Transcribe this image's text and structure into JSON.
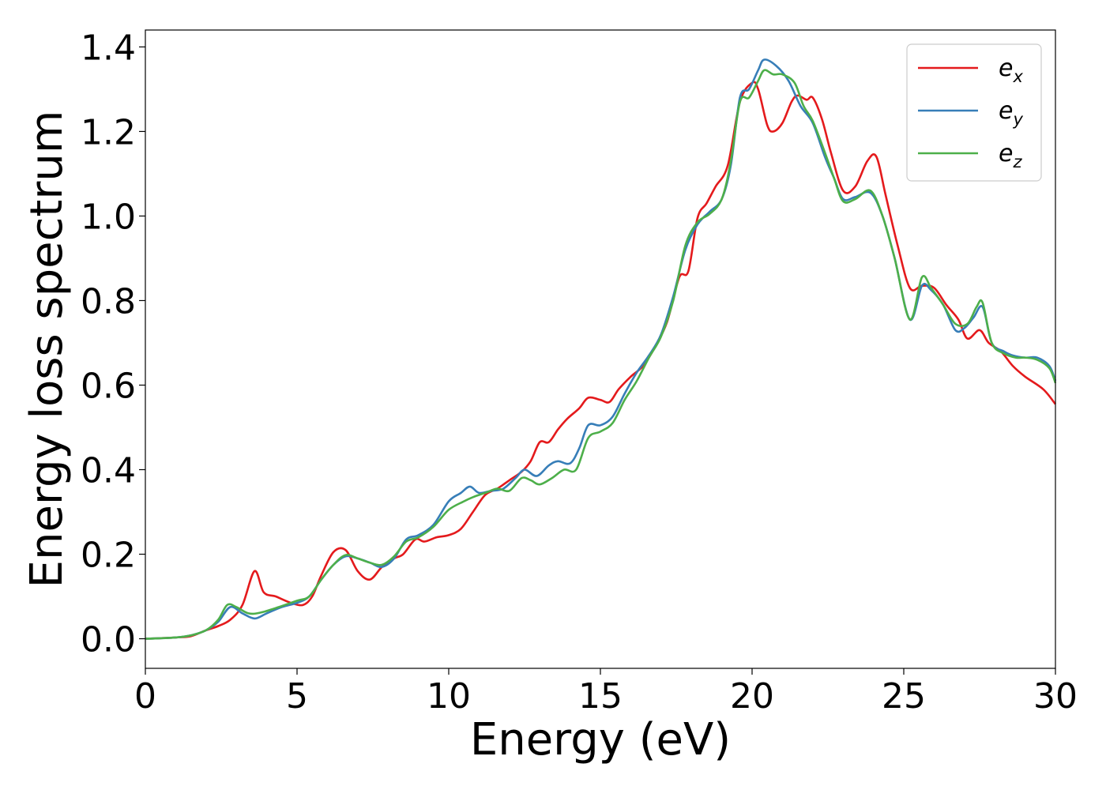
{
  "chart_data": {
    "type": "line",
    "title": "",
    "xlabel": "Energy (eV)",
    "ylabel": "Energy loss spectrum",
    "xlim": [
      0,
      30
    ],
    "ylim": [
      -0.07,
      1.44
    ],
    "xticks": [
      0,
      5,
      10,
      15,
      20,
      25,
      30
    ],
    "xtick_labels": [
      "0",
      "5",
      "10",
      "15",
      "20",
      "25",
      "30"
    ],
    "yticks": [
      0.0,
      0.2,
      0.4,
      0.6,
      0.8,
      1.0,
      1.2,
      1.4
    ],
    "ytick_labels": [
      "0.0",
      "0.2",
      "0.4",
      "0.6",
      "0.8",
      "1.0",
      "1.2",
      "1.4"
    ],
    "grid": false,
    "legend_position": "top-right",
    "series": [
      {
        "name": "e_x",
        "label_base": "e",
        "label_sub": "x",
        "color": "#e41a1c",
        "points": [
          [
            0,
            0
          ],
          [
            1,
            0.003
          ],
          [
            1.5,
            0.006
          ],
          [
            2,
            0.02
          ],
          [
            2.4,
            0.03
          ],
          [
            2.8,
            0.045
          ],
          [
            3.2,
            0.08
          ],
          [
            3.6,
            0.16
          ],
          [
            3.9,
            0.11
          ],
          [
            4.3,
            0.1
          ],
          [
            4.8,
            0.085
          ],
          [
            5.2,
            0.08
          ],
          [
            5.5,
            0.1
          ],
          [
            5.8,
            0.15
          ],
          [
            6.2,
            0.205
          ],
          [
            6.6,
            0.21
          ],
          [
            7,
            0.16
          ],
          [
            7.4,
            0.14
          ],
          [
            7.8,
            0.17
          ],
          [
            8.2,
            0.19
          ],
          [
            8.5,
            0.2
          ],
          [
            8.9,
            0.235
          ],
          [
            9.2,
            0.23
          ],
          [
            9.6,
            0.24
          ],
          [
            10,
            0.245
          ],
          [
            10.4,
            0.26
          ],
          [
            10.8,
            0.3
          ],
          [
            11.2,
            0.34
          ],
          [
            11.6,
            0.355
          ],
          [
            12,
            0.375
          ],
          [
            12.4,
            0.395
          ],
          [
            12.7,
            0.42
          ],
          [
            13,
            0.465
          ],
          [
            13.3,
            0.465
          ],
          [
            13.6,
            0.495
          ],
          [
            13.9,
            0.52
          ],
          [
            14.3,
            0.545
          ],
          [
            14.6,
            0.57
          ],
          [
            15,
            0.565
          ],
          [
            15.3,
            0.56
          ],
          [
            15.6,
            0.59
          ],
          [
            16,
            0.62
          ],
          [
            16.4,
            0.645
          ],
          [
            16.8,
            0.69
          ],
          [
            17.2,
            0.75
          ],
          [
            17.6,
            0.855
          ],
          [
            17.9,
            0.87
          ],
          [
            18.2,
            0.995
          ],
          [
            18.5,
            1.03
          ],
          [
            18.8,
            1.07
          ],
          [
            19.2,
            1.12
          ],
          [
            19.6,
            1.27
          ],
          [
            20,
            1.315
          ],
          [
            20.2,
            1.3
          ],
          [
            20.5,
            1.215
          ],
          [
            20.7,
            1.2
          ],
          [
            21,
            1.22
          ],
          [
            21.3,
            1.27
          ],
          [
            21.5,
            1.285
          ],
          [
            21.8,
            1.275
          ],
          [
            22,
            1.28
          ],
          [
            22.3,
            1.23
          ],
          [
            22.6,
            1.15
          ],
          [
            23,
            1.06
          ],
          [
            23.4,
            1.07
          ],
          [
            23.8,
            1.13
          ],
          [
            24.1,
            1.14
          ],
          [
            24.4,
            1.05
          ],
          [
            24.8,
            0.93
          ],
          [
            25.2,
            0.83
          ],
          [
            25.6,
            0.835
          ],
          [
            26,
            0.83
          ],
          [
            26.4,
            0.79
          ],
          [
            26.8,
            0.755
          ],
          [
            27.1,
            0.71
          ],
          [
            27.5,
            0.73
          ],
          [
            27.8,
            0.7
          ],
          [
            28.2,
            0.68
          ],
          [
            28.6,
            0.645
          ],
          [
            29,
            0.62
          ],
          [
            29.6,
            0.59
          ],
          [
            30,
            0.555
          ]
        ]
      },
      {
        "name": "e_y",
        "label_base": "e",
        "label_sub": "y",
        "color": "#377eb8",
        "points": [
          [
            0,
            0
          ],
          [
            1,
            0.003
          ],
          [
            1.5,
            0.008
          ],
          [
            2,
            0.02
          ],
          [
            2.4,
            0.04
          ],
          [
            2.8,
            0.075
          ],
          [
            3.2,
            0.06
          ],
          [
            3.6,
            0.048
          ],
          [
            4,
            0.06
          ],
          [
            4.5,
            0.075
          ],
          [
            5,
            0.085
          ],
          [
            5.4,
            0.1
          ],
          [
            5.8,
            0.14
          ],
          [
            6.2,
            0.175
          ],
          [
            6.6,
            0.195
          ],
          [
            7,
            0.19
          ],
          [
            7.4,
            0.18
          ],
          [
            7.8,
            0.17
          ],
          [
            8.2,
            0.19
          ],
          [
            8.6,
            0.235
          ],
          [
            9,
            0.245
          ],
          [
            9.5,
            0.27
          ],
          [
            10,
            0.325
          ],
          [
            10.4,
            0.345
          ],
          [
            10.7,
            0.36
          ],
          [
            11,
            0.345
          ],
          [
            11.4,
            0.35
          ],
          [
            11.8,
            0.355
          ],
          [
            12.2,
            0.38
          ],
          [
            12.5,
            0.4
          ],
          [
            12.9,
            0.385
          ],
          [
            13.3,
            0.41
          ],
          [
            13.6,
            0.42
          ],
          [
            14,
            0.415
          ],
          [
            14.3,
            0.45
          ],
          [
            14.6,
            0.505
          ],
          [
            15,
            0.505
          ],
          [
            15.4,
            0.525
          ],
          [
            15.8,
            0.58
          ],
          [
            16.2,
            0.63
          ],
          [
            16.6,
            0.67
          ],
          [
            17,
            0.72
          ],
          [
            17.4,
            0.81
          ],
          [
            17.8,
            0.92
          ],
          [
            18.2,
            0.98
          ],
          [
            18.6,
            1.01
          ],
          [
            19,
            1.04
          ],
          [
            19.3,
            1.12
          ],
          [
            19.6,
            1.28
          ],
          [
            19.9,
            1.3
          ],
          [
            20.2,
            1.345
          ],
          [
            20.4,
            1.37
          ],
          [
            20.8,
            1.355
          ],
          [
            21.2,
            1.32
          ],
          [
            21.6,
            1.26
          ],
          [
            22,
            1.22
          ],
          [
            22.4,
            1.14
          ],
          [
            22.7,
            1.09
          ],
          [
            23,
            1.04
          ],
          [
            23.4,
            1.045
          ],
          [
            23.9,
            1.055
          ],
          [
            24.3,
            1.0
          ],
          [
            24.7,
            0.9
          ],
          [
            25.2,
            0.755
          ],
          [
            25.6,
            0.835
          ],
          [
            25.9,
            0.825
          ],
          [
            26.3,
            0.79
          ],
          [
            26.7,
            0.73
          ],
          [
            27,
            0.735
          ],
          [
            27.3,
            0.76
          ],
          [
            27.6,
            0.785
          ],
          [
            27.9,
            0.7
          ],
          [
            28.3,
            0.68
          ],
          [
            28.6,
            0.67
          ],
          [
            29,
            0.665
          ],
          [
            29.4,
            0.665
          ],
          [
            29.8,
            0.645
          ],
          [
            30,
            0.61
          ]
        ]
      },
      {
        "name": "e_z",
        "label_base": "e",
        "label_sub": "z",
        "color": "#4daf4a",
        "points": [
          [
            0,
            0
          ],
          [
            1,
            0.003
          ],
          [
            1.5,
            0.008
          ],
          [
            2,
            0.02
          ],
          [
            2.4,
            0.045
          ],
          [
            2.7,
            0.08
          ],
          [
            3,
            0.075
          ],
          [
            3.4,
            0.06
          ],
          [
            3.8,
            0.062
          ],
          [
            4.4,
            0.075
          ],
          [
            5,
            0.09
          ],
          [
            5.4,
            0.1
          ],
          [
            5.8,
            0.14
          ],
          [
            6.2,
            0.175
          ],
          [
            6.6,
            0.198
          ],
          [
            7,
            0.19
          ],
          [
            7.4,
            0.18
          ],
          [
            7.8,
            0.175
          ],
          [
            8.2,
            0.195
          ],
          [
            8.6,
            0.23
          ],
          [
            9,
            0.24
          ],
          [
            9.5,
            0.265
          ],
          [
            10,
            0.305
          ],
          [
            10.5,
            0.325
          ],
          [
            10.8,
            0.335
          ],
          [
            11.2,
            0.345
          ],
          [
            11.6,
            0.355
          ],
          [
            12,
            0.35
          ],
          [
            12.4,
            0.38
          ],
          [
            12.7,
            0.375
          ],
          [
            13,
            0.365
          ],
          [
            13.4,
            0.38
          ],
          [
            13.8,
            0.4
          ],
          [
            14.2,
            0.4
          ],
          [
            14.6,
            0.475
          ],
          [
            15,
            0.49
          ],
          [
            15.4,
            0.51
          ],
          [
            15.8,
            0.565
          ],
          [
            16.2,
            0.61
          ],
          [
            16.6,
            0.665
          ],
          [
            17,
            0.715
          ],
          [
            17.4,
            0.8
          ],
          [
            17.8,
            0.93
          ],
          [
            18.2,
            0.985
          ],
          [
            18.6,
            1.005
          ],
          [
            19,
            1.04
          ],
          [
            19.3,
            1.13
          ],
          [
            19.6,
            1.27
          ],
          [
            19.9,
            1.28
          ],
          [
            20.2,
            1.32
          ],
          [
            20.4,
            1.345
          ],
          [
            20.7,
            1.335
          ],
          [
            21,
            1.335
          ],
          [
            21.4,
            1.315
          ],
          [
            21.7,
            1.26
          ],
          [
            22,
            1.225
          ],
          [
            22.4,
            1.15
          ],
          [
            22.7,
            1.09
          ],
          [
            23,
            1.035
          ],
          [
            23.4,
            1.04
          ],
          [
            23.9,
            1.06
          ],
          [
            24.3,
            1.0
          ],
          [
            24.7,
            0.9
          ],
          [
            25.2,
            0.755
          ],
          [
            25.6,
            0.855
          ],
          [
            25.9,
            0.83
          ],
          [
            26.3,
            0.79
          ],
          [
            26.7,
            0.745
          ],
          [
            27.1,
            0.745
          ],
          [
            27.4,
            0.785
          ],
          [
            27.6,
            0.795
          ],
          [
            27.9,
            0.7
          ],
          [
            28.3,
            0.675
          ],
          [
            28.7,
            0.665
          ],
          [
            29,
            0.665
          ],
          [
            29.4,
            0.66
          ],
          [
            29.8,
            0.64
          ],
          [
            30,
            0.605
          ]
        ]
      }
    ]
  }
}
